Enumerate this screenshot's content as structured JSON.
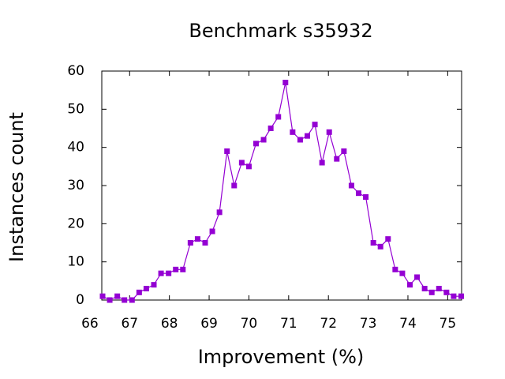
{
  "chart_data": {
    "type": "line",
    "title": "Benchmark s35932",
    "x_label": "Improvement (%)",
    "y_label": "Instances count",
    "x": [
      66.32,
      66.5,
      66.69,
      66.87,
      67.06,
      67.24,
      67.42,
      67.61,
      67.79,
      67.98,
      68.16,
      68.34,
      68.53,
      68.71,
      68.9,
      69.08,
      69.26,
      69.45,
      69.63,
      69.82,
      70.0,
      70.18,
      70.37,
      70.55,
      70.74,
      70.92,
      71.1,
      71.29,
      71.47,
      71.66,
      71.84,
      72.02,
      72.21,
      72.39,
      72.58,
      72.76,
      72.94,
      73.13,
      73.31,
      73.5,
      73.68,
      73.86,
      74.05,
      74.23,
      74.42,
      74.6,
      74.78,
      74.97,
      75.15,
      75.34
    ],
    "series": [
      {
        "color": "#9400d3",
        "values": [
          1,
          0,
          1,
          0,
          0,
          2,
          3,
          4,
          7,
          7,
          8,
          8,
          15,
          16,
          15,
          18,
          23,
          39,
          30,
          36,
          35,
          41,
          42,
          45,
          48,
          57,
          44,
          42,
          43,
          46,
          36,
          44,
          37,
          39,
          30,
          28,
          27,
          15,
          14,
          16,
          8,
          7,
          4,
          6,
          3,
          2,
          3,
          2,
          1,
          1
        ]
      }
    ],
    "xlim": [
      66.3,
      75.35
    ],
    "xticks": [
      66,
      67,
      68,
      69,
      70,
      71,
      72,
      73,
      74,
      75
    ],
    "ylim": [
      0,
      60
    ],
    "yticks": [
      0,
      10,
      20,
      30,
      40,
      50,
      60
    ],
    "grid": false
  }
}
